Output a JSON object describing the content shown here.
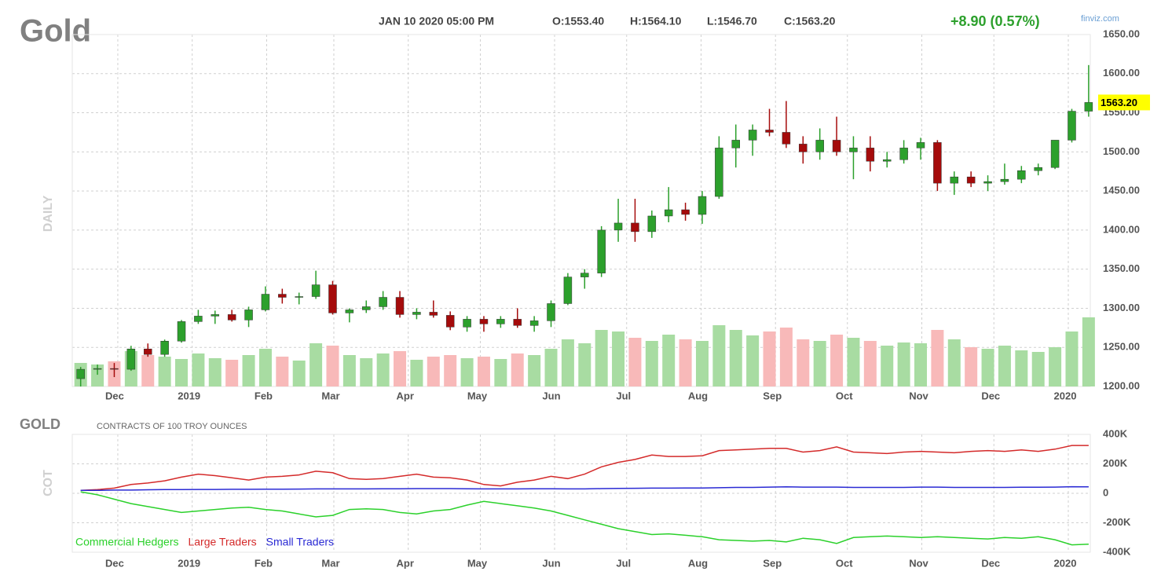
{
  "header": {
    "symbol": "Gold",
    "date": "JAN 10 2020 05:00 PM",
    "open": "O:1553.40",
    "high": "H:1564.10",
    "low": "L:1546.70",
    "close": "C:1563.20",
    "change": "+8.90 (0.57%)",
    "source": "finviz.com"
  },
  "chart_data": [
    {
      "type": "candlestick",
      "label": "DAILY",
      "up_color": "#2ca02c",
      "down_color": "#a50b0b",
      "volume_up_color": "#a8dca2",
      "volume_down_color": "#f8b9b9",
      "xlim": [
        0,
        60.6
      ],
      "xticks": [
        {
          "value": 2.71,
          "label": "Dec"
        },
        {
          "value": 7.14,
          "label": "2019"
        },
        {
          "value": 11.57,
          "label": "Feb"
        },
        {
          "value": 15.57,
          "label": "Mar"
        },
        {
          "value": 20,
          "label": "Apr"
        },
        {
          "value": 24.29,
          "label": "May"
        },
        {
          "value": 28.71,
          "label": "Jun"
        },
        {
          "value": 33,
          "label": "Jul"
        },
        {
          "value": 37.43,
          "label": "Aug"
        },
        {
          "value": 41.86,
          "label": "Sep"
        },
        {
          "value": 46.14,
          "label": "Oct"
        },
        {
          "value": 50.57,
          "label": "Nov"
        },
        {
          "value": 54.86,
          "label": "Dec"
        },
        {
          "value": 59.29,
          "label": "2020"
        }
      ],
      "ylim": [
        1200,
        1650
      ],
      "yticks": [
        {
          "value": 1200,
          "label": "1200.00"
        },
        {
          "value": 1250,
          "label": "1250.00"
        },
        {
          "value": 1300,
          "label": "1300.00"
        },
        {
          "value": 1350,
          "label": "1350.00"
        },
        {
          "value": 1400,
          "label": "1400.00"
        },
        {
          "value": 1450,
          "label": "1450.00"
        },
        {
          "value": 1500,
          "label": "1500.00"
        },
        {
          "value": 1550,
          "label": "1550.00"
        },
        {
          "value": 1600,
          "label": "1600.00"
        },
        {
          "value": 1650,
          "label": "1650.00"
        }
      ],
      "grid": true,
      "open": [
        1210,
        1222,
        1223,
        1222,
        1248,
        1241,
        1258,
        1283,
        1290,
        1292,
        1285,
        1298,
        1318,
        1314,
        1315,
        1330,
        1294,
        1298,
        1302,
        1314,
        1292,
        1295,
        1291,
        1276,
        1286,
        1280,
        1286,
        1278,
        1284,
        1306,
        1340,
        1345,
        1400,
        1409,
        1398,
        1418,
        1426,
        1420,
        1443,
        1505,
        1515,
        1528,
        1525,
        1510,
        1500,
        1515,
        1500,
        1505,
        1488,
        1490,
        1505,
        1512,
        1460,
        1468,
        1460,
        1462,
        1465,
        1476,
        1480,
        1515,
        1552
      ],
      "high": [
        1225,
        1228,
        1230,
        1252,
        1255,
        1260,
        1285,
        1298,
        1297,
        1298,
        1302,
        1328,
        1325,
        1320,
        1348,
        1335,
        1300,
        1310,
        1322,
        1322,
        1300,
        1310,
        1296,
        1290,
        1290,
        1290,
        1300,
        1290,
        1310,
        1345,
        1350,
        1405,
        1440,
        1440,
        1425,
        1455,
        1435,
        1450,
        1520,
        1535,
        1535,
        1555,
        1565,
        1520,
        1530,
        1545,
        1520,
        1520,
        1500,
        1515,
        1518,
        1515,
        1475,
        1475,
        1470,
        1485,
        1482,
        1485,
        1515,
        1555,
        1611
      ],
      "low": [
        1200,
        1215,
        1212,
        1220,
        1238,
        1238,
        1256,
        1280,
        1280,
        1283,
        1276,
        1296,
        1306,
        1305,
        1312,
        1292,
        1282,
        1294,
        1298,
        1288,
        1286,
        1288,
        1272,
        1270,
        1270,
        1275,
        1275,
        1270,
        1276,
        1304,
        1325,
        1340,
        1385,
        1385,
        1390,
        1410,
        1412,
        1408,
        1440,
        1480,
        1495,
        1520,
        1505,
        1485,
        1490,
        1495,
        1465,
        1475,
        1480,
        1485,
        1490,
        1450,
        1445,
        1455,
        1450,
        1458,
        1460,
        1470,
        1478,
        1512,
        1545
      ],
      "close": [
        1222,
        1223,
        1222,
        1248,
        1241,
        1258,
        1283,
        1290,
        1292,
        1285,
        1298,
        1318,
        1314,
        1315,
        1330,
        1294,
        1298,
        1302,
        1314,
        1292,
        1295,
        1291,
        1276,
        1286,
        1280,
        1286,
        1278,
        1284,
        1306,
        1340,
        1345,
        1400,
        1409,
        1398,
        1418,
        1426,
        1420,
        1443,
        1505,
        1515,
        1528,
        1525,
        1510,
        1500,
        1515,
        1500,
        1505,
        1488,
        1490,
        1505,
        1512,
        1460,
        1468,
        1460,
        1462,
        1465,
        1476,
        1480,
        1515,
        1552,
        1563.2
      ],
      "last": {
        "value": 1563.2,
        "label": "1563.20"
      },
      "volume_lim": [
        0,
        100
      ],
      "volume": [
        30,
        28,
        32,
        45,
        40,
        38,
        35,
        42,
        36,
        34,
        40,
        48,
        38,
        33,
        55,
        52,
        40,
        36,
        42,
        45,
        34,
        38,
        40,
        36,
        38,
        35,
        42,
        40,
        48,
        60,
        55,
        72,
        70,
        62,
        58,
        66,
        60,
        58,
        78,
        72,
        65,
        70,
        75,
        60,
        58,
        66,
        62,
        58,
        52,
        56,
        55,
        72,
        60,
        50,
        48,
        52,
        46,
        44,
        50,
        70,
        88
      ]
    },
    {
      "type": "line",
      "title": "GOLD",
      "subtitle": "CONTRACTS OF 100 TROY OUNCES",
      "label": "COT",
      "xlim": [
        0,
        60.6
      ],
      "ylim": [
        -400000,
        400000
      ],
      "yticks": [
        {
          "value": -400000,
          "label": "-400K"
        },
        {
          "value": -200000,
          "label": "-200K"
        },
        0,
        {
          "value": 200000,
          "label": "200K"
        },
        {
          "value": 400000,
          "label": "400K"
        }
      ],
      "grid": true,
      "series": [
        {
          "name": "Commercial Hedgers",
          "color": "#2bd12b",
          "values": [
            10000,
            -10000,
            -40000,
            -70000,
            -90000,
            -110000,
            -130000,
            -120000,
            -110000,
            -100000,
            -95000,
            -110000,
            -120000,
            -140000,
            -160000,
            -150000,
            -110000,
            -105000,
            -110000,
            -130000,
            -140000,
            -120000,
            -110000,
            -80000,
            -55000,
            -70000,
            -85000,
            -100000,
            -120000,
            -150000,
            -180000,
            -210000,
            -240000,
            -260000,
            -280000,
            -275000,
            -285000,
            -295000,
            -315000,
            -320000,
            -325000,
            -320000,
            -330000,
            -305000,
            -315000,
            -340000,
            -300000,
            -295000,
            -290000,
            -295000,
            -300000,
            -295000,
            -300000,
            -305000,
            -310000,
            -300000,
            -305000,
            -295000,
            -315000,
            -350000,
            -345000
          ]
        },
        {
          "name": "Large Traders",
          "color": "#d42a2a",
          "values": [
            20000,
            25000,
            35000,
            60000,
            70000,
            85000,
            110000,
            130000,
            120000,
            105000,
            90000,
            110000,
            115000,
            125000,
            150000,
            140000,
            100000,
            95000,
            100000,
            115000,
            130000,
            110000,
            105000,
            90000,
            60000,
            50000,
            75000,
            90000,
            115000,
            100000,
            130000,
            180000,
            210000,
            230000,
            260000,
            250000,
            250000,
            255000,
            290000,
            295000,
            300000,
            305000,
            305000,
            280000,
            290000,
            315000,
            280000,
            275000,
            270000,
            280000,
            285000,
            280000,
            275000,
            285000,
            290000,
            285000,
            295000,
            285000,
            300000,
            325000,
            325000
          ]
        },
        {
          "name": "Small Traders",
          "color": "#2a2ad4",
          "values": [
            20000,
            20000,
            22000,
            22000,
            24000,
            25000,
            25000,
            26000,
            26000,
            27000,
            27000,
            28000,
            28000,
            29000,
            30000,
            30000,
            30000,
            30000,
            31000,
            31000,
            32000,
            32000,
            32000,
            31000,
            30000,
            30000,
            30000,
            31000,
            31000,
            30000,
            30000,
            32000,
            33000,
            34000,
            35000,
            35000,
            36000,
            36000,
            38000,
            40000,
            40000,
            42000,
            44000,
            42000,
            42000,
            42000,
            40000,
            40000,
            40000,
            40000,
            42000,
            42000,
            40000,
            40000,
            40000,
            40000,
            41000,
            41000,
            42000,
            45000,
            44000
          ]
        }
      ]
    }
  ]
}
